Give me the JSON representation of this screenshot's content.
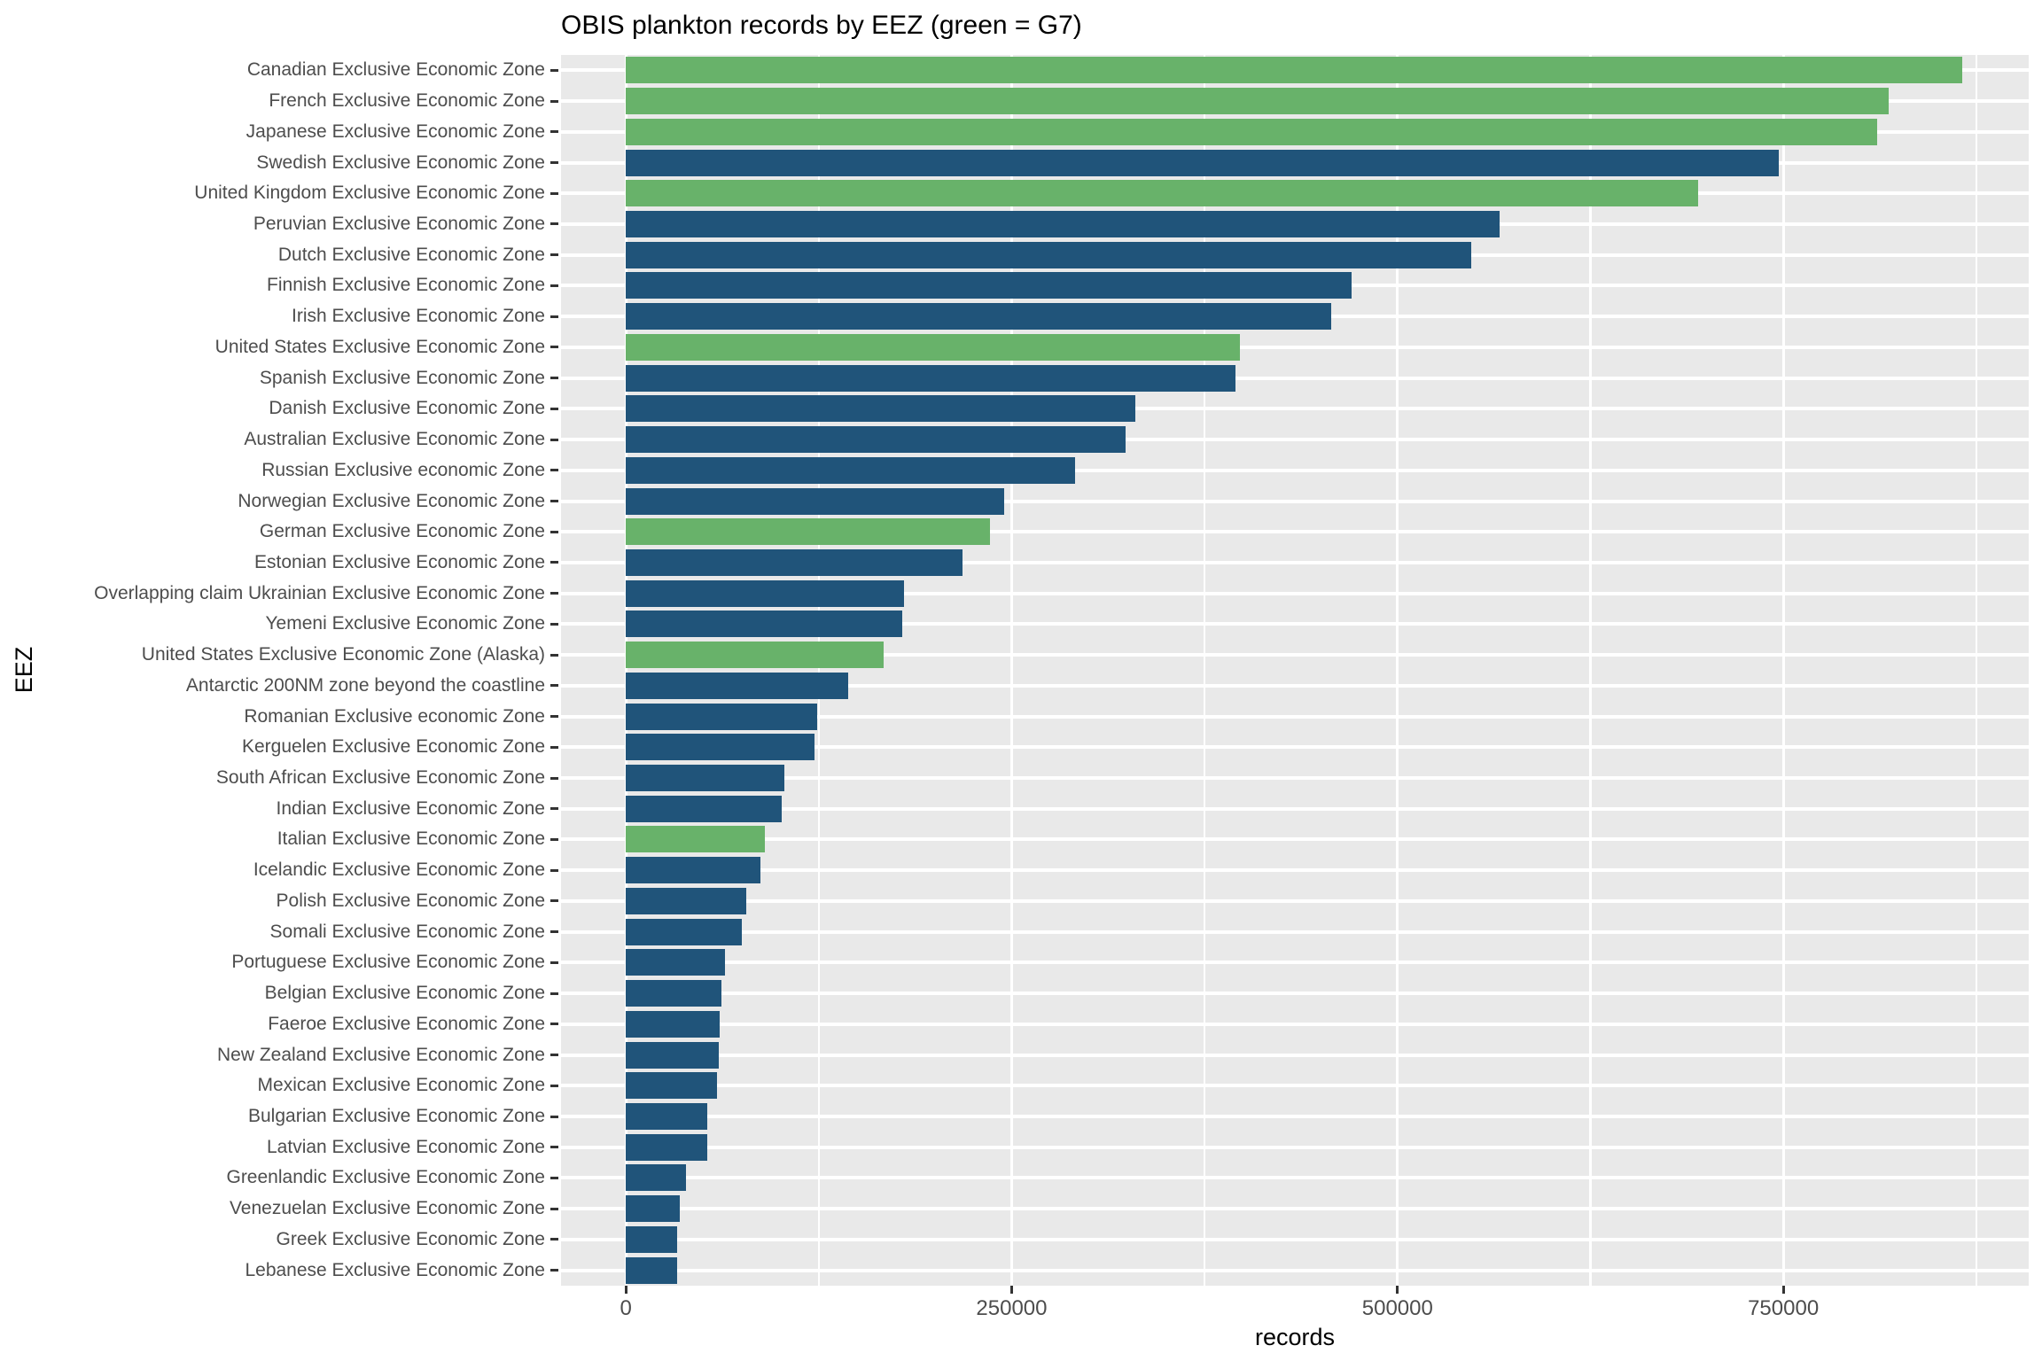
{
  "chart_data": {
    "type": "bar",
    "orientation": "horizontal",
    "title": "OBIS plankton records by EEZ (green = G7)",
    "xlabel": "records",
    "ylabel": "EEZ",
    "grid": true,
    "legend_position": "none",
    "color_encoding": "green = G7 member EEZ, blue = other EEZ",
    "x_ticks": [
      {
        "value": 0,
        "label": "0"
      },
      {
        "value": 250000,
        "label": "250000"
      },
      {
        "value": 500000,
        "label": "500000"
      },
      {
        "value": 750000,
        "label": "750000"
      }
    ],
    "x_minor_gridlines": [
      125000,
      375000,
      625000,
      875000
    ],
    "xlim": [
      -42000,
      909000
    ],
    "colors": {
      "g7_green": "#68B26A",
      "other_blue": "#20547A",
      "panel_background": "#E9E9E9",
      "gridline": "#FFFFFF",
      "axis_text": "#4D4D4D",
      "tick_mark": "#333333",
      "title_text": "#000000"
    },
    "categories": [
      {
        "label": "Canadian Exclusive Economic Zone",
        "value": 866000,
        "g7": true
      },
      {
        "label": "French Exclusive Economic Zone",
        "value": 818000,
        "g7": true
      },
      {
        "label": "Japanese Exclusive Economic Zone",
        "value": 811000,
        "g7": true
      },
      {
        "label": "Swedish Exclusive Economic Zone",
        "value": 747000,
        "g7": false
      },
      {
        "label": "United Kingdom Exclusive Economic Zone",
        "value": 695000,
        "g7": true
      },
      {
        "label": "Peruvian Exclusive Economic Zone",
        "value": 566000,
        "g7": false
      },
      {
        "label": "Dutch Exclusive Economic Zone",
        "value": 548000,
        "g7": false
      },
      {
        "label": "Finnish Exclusive Economic Zone",
        "value": 470000,
        "g7": false
      },
      {
        "label": "Irish Exclusive Economic Zone",
        "value": 457000,
        "g7": false
      },
      {
        "label": "United States Exclusive Economic Zone",
        "value": 398000,
        "g7": true
      },
      {
        "label": "Spanish Exclusive Economic Zone",
        "value": 395000,
        "g7": false
      },
      {
        "label": "Danish Exclusive Economic Zone",
        "value": 330000,
        "g7": false
      },
      {
        "label": "Australian Exclusive Economic Zone",
        "value": 324000,
        "g7": false
      },
      {
        "label": "Russian Exclusive economic Zone",
        "value": 291000,
        "g7": false
      },
      {
        "label": "Norwegian Exclusive Economic Zone",
        "value": 245000,
        "g7": false
      },
      {
        "label": "German Exclusive Economic Zone",
        "value": 236000,
        "g7": true
      },
      {
        "label": "Estonian Exclusive Economic Zone",
        "value": 218000,
        "g7": false
      },
      {
        "label": "Overlapping claim Ukrainian Exclusive Economic Zone",
        "value": 180000,
        "g7": false
      },
      {
        "label": "Yemeni Exclusive Economic Zone",
        "value": 179000,
        "g7": false
      },
      {
        "label": "United States Exclusive Economic Zone (Alaska)",
        "value": 167000,
        "g7": true
      },
      {
        "label": "Antarctic 200NM zone beyond the coastline",
        "value": 144000,
        "g7": false
      },
      {
        "label": "Romanian Exclusive economic Zone",
        "value": 124000,
        "g7": false
      },
      {
        "label": "Kerguelen Exclusive Economic Zone",
        "value": 122000,
        "g7": false
      },
      {
        "label": "South African Exclusive Economic Zone",
        "value": 103000,
        "g7": false
      },
      {
        "label": "Indian Exclusive Economic Zone",
        "value": 101000,
        "g7": false
      },
      {
        "label": "Italian Exclusive Economic Zone",
        "value": 90000,
        "g7": true
      },
      {
        "label": "Icelandic Exclusive Economic Zone",
        "value": 87000,
        "g7": false
      },
      {
        "label": "Polish Exclusive Economic Zone",
        "value": 78000,
        "g7": false
      },
      {
        "label": "Somali Exclusive Economic Zone",
        "value": 75000,
        "g7": false
      },
      {
        "label": "Portuguese Exclusive Economic Zone",
        "value": 64000,
        "g7": false
      },
      {
        "label": "Belgian Exclusive Economic Zone",
        "value": 62000,
        "g7": false
      },
      {
        "label": "Faeroe Exclusive Economic Zone",
        "value": 61000,
        "g7": false
      },
      {
        "label": "New Zealand Exclusive Economic Zone",
        "value": 60000,
        "g7": false
      },
      {
        "label": "Mexican Exclusive Economic Zone",
        "value": 59000,
        "g7": false
      },
      {
        "label": "Bulgarian Exclusive Economic Zone",
        "value": 53000,
        "g7": false
      },
      {
        "label": "Latvian Exclusive Economic Zone",
        "value": 52700,
        "g7": false
      },
      {
        "label": "Greenlandic Exclusive Economic Zone",
        "value": 39000,
        "g7": false
      },
      {
        "label": "Venezuelan Exclusive Economic Zone",
        "value": 35000,
        "g7": false
      },
      {
        "label": "Greek Exclusive Economic Zone",
        "value": 33300,
        "g7": false
      },
      {
        "label": "Lebanese Exclusive Economic Zone",
        "value": 33000,
        "g7": false
      }
    ]
  }
}
